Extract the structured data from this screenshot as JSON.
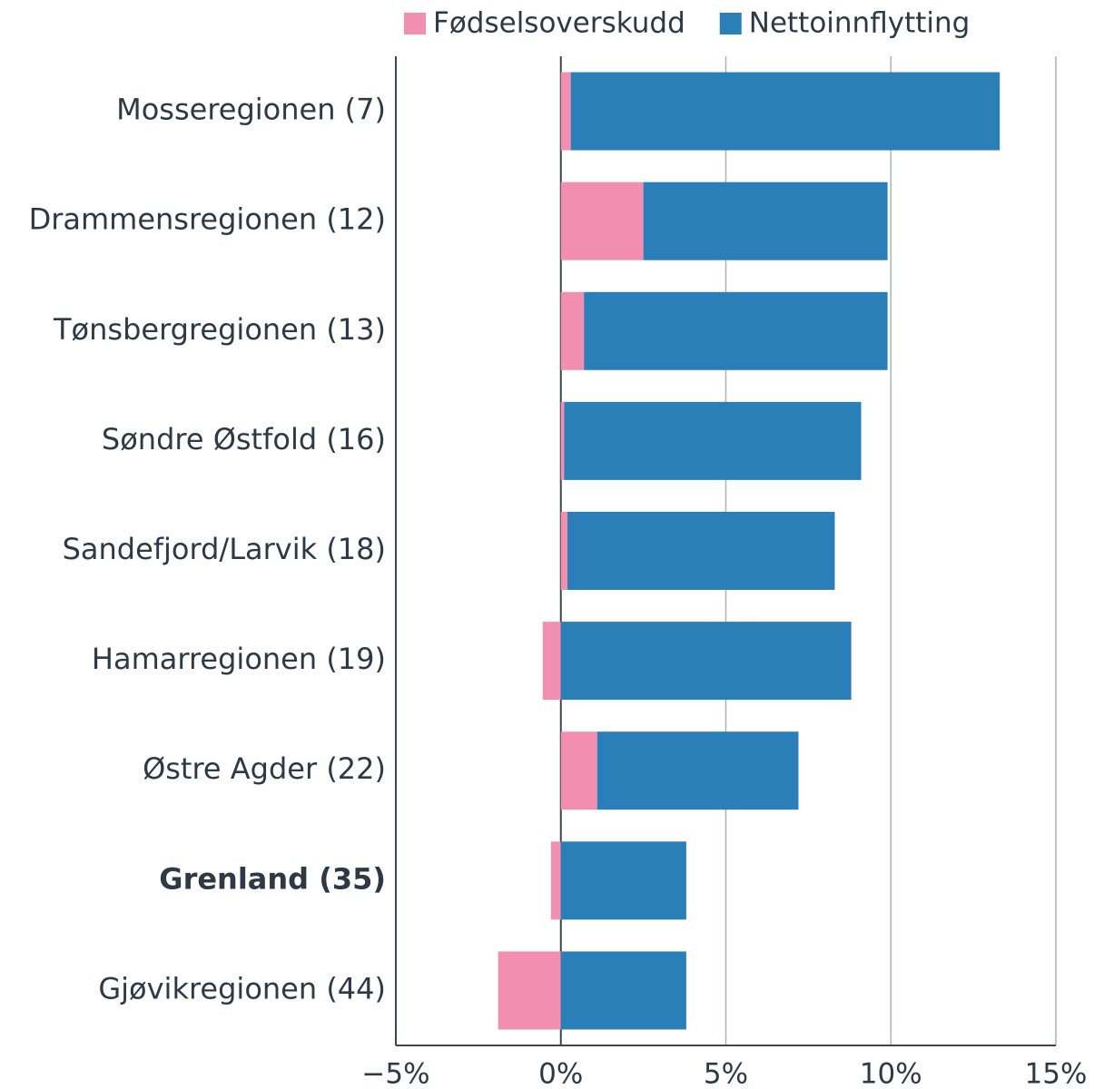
{
  "chart_data": {
    "type": "stacked_barh",
    "categories": [
      "Mosseregionen (7)",
      "Drammensregionen (12)",
      "Tønsbergregionen (13)",
      "Søndre Østfold (16)",
      "Sandefjord/Larvik (18)",
      "Hamarregionen (19)",
      "Østre Agder (22)",
      "Grenland (35)",
      "Gjøvikregionen (44)"
    ],
    "highlight_index": 7,
    "series": [
      {
        "name": "Fødselsoverskudd",
        "color": "#f28fb1",
        "values": [
          0.3,
          2.5,
          0.7,
          0.1,
          0.2,
          -0.55,
          1.1,
          -0.3,
          -1.9
        ]
      },
      {
        "name": "Nettoinnflytting",
        "color": "#2a7fb8",
        "values": [
          13.0,
          7.4,
          9.2,
          9.0,
          8.1,
          8.8,
          6.1,
          3.8,
          3.8
        ]
      }
    ],
    "xlim": [
      -5,
      15
    ],
    "xticks": [
      {
        "value": -5,
        "label": "−5%"
      },
      {
        "value": 0,
        "label": "0%"
      },
      {
        "value": 5,
        "label": "5%"
      },
      {
        "value": 10,
        "label": "10%"
      },
      {
        "value": 15,
        "label": "15%"
      }
    ],
    "grid": true,
    "legend": "top"
  }
}
